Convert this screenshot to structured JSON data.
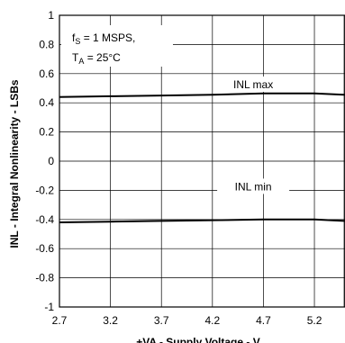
{
  "chart_data": {
    "type": "line",
    "title": "",
    "xlabel": "+VA - Supply Voltage - V",
    "ylabel": "INL - Integral Nonlinearity - LSBs",
    "xlim": [
      2.7,
      5.5
    ],
    "ylim": [
      -1,
      1
    ],
    "xticks": [
      2.7,
      3.2,
      3.7,
      4.2,
      4.7,
      5.2
    ],
    "xtick_labels": [
      "2.7",
      "3.2",
      "3.7",
      "4.2",
      "4.7",
      "5.2"
    ],
    "yticks": [
      -1,
      -0.8,
      -0.6,
      -0.4,
      -0.2,
      0,
      0.2,
      0.4,
      0.6,
      0.8,
      1
    ],
    "ytick_labels": [
      "-1",
      "-0.8",
      "-0.6",
      "-0.4",
      "-0.2",
      "0",
      "0.2",
      "0.4",
      "0.6",
      "0.8",
      "1"
    ],
    "grid": true,
    "annotation": {
      "line1_main": "f",
      "line1_sub": "S",
      "line1_rest": " = 1 MSPS,",
      "line2_main": "T",
      "line2_sub": "A",
      "line2_rest": " = 25°C"
    },
    "series": [
      {
        "name": "INL max",
        "x": [
          2.7,
          3.2,
          3.7,
          4.2,
          4.7,
          5.2,
          5.5
        ],
        "values": [
          0.44,
          0.445,
          0.45,
          0.455,
          0.465,
          0.465,
          0.455
        ]
      },
      {
        "name": "INL min",
        "x": [
          2.7,
          3.2,
          3.7,
          4.2,
          4.7,
          5.2,
          5.5
        ],
        "values": [
          -0.42,
          -0.415,
          -0.41,
          -0.405,
          -0.4,
          -0.4,
          -0.41
        ]
      }
    ]
  }
}
